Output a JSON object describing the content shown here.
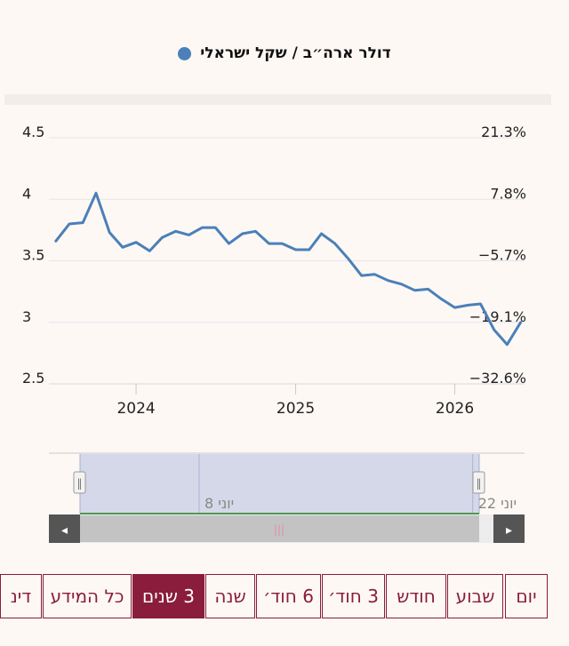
{
  "legend": {
    "label": "דולר ארה״ב / שקל ישראלי",
    "color": "#4b80b8"
  },
  "chart_data": {
    "type": "line",
    "series": [
      {
        "name": "דולר ארה״ב / שקל ישראלי",
        "color": "#4b80b8",
        "points": [
          [
            "2023-07-01",
            3.66
          ],
          [
            "2023-08-01",
            3.8
          ],
          [
            "2023-09-01",
            3.81
          ],
          [
            "2023-10-01",
            4.05
          ],
          [
            "2023-11-01",
            3.73
          ],
          [
            "2023-12-01",
            3.61
          ],
          [
            "2024-01-01",
            3.65
          ],
          [
            "2024-02-01",
            3.58
          ],
          [
            "2024-03-01",
            3.69
          ],
          [
            "2024-04-01",
            3.74
          ],
          [
            "2024-05-01",
            3.71
          ],
          [
            "2024-06-01",
            3.77
          ],
          [
            "2024-07-01",
            3.77
          ],
          [
            "2024-08-01",
            3.64
          ],
          [
            "2024-09-01",
            3.72
          ],
          [
            "2024-10-01",
            3.74
          ],
          [
            "2024-11-01",
            3.64
          ],
          [
            "2024-12-01",
            3.64
          ],
          [
            "2025-01-01",
            3.59
          ],
          [
            "2025-02-01",
            3.59
          ],
          [
            "2025-03-01",
            3.72
          ],
          [
            "2025-04-01",
            3.64
          ],
          [
            "2025-05-01",
            3.52
          ],
          [
            "2025-06-01",
            3.38
          ],
          [
            "2025-07-01",
            3.39
          ],
          [
            "2025-08-01",
            3.34
          ],
          [
            "2025-09-01",
            3.31
          ],
          [
            "2025-10-01",
            3.26
          ],
          [
            "2025-11-01",
            3.27
          ],
          [
            "2025-12-01",
            3.19
          ],
          [
            "2026-01-01",
            3.12
          ],
          [
            "2026-02-01",
            3.14
          ],
          [
            "2026-03-01",
            3.15
          ],
          [
            "2026-04-01",
            2.94
          ],
          [
            "2026-05-01",
            2.82
          ],
          [
            "2026-06-01",
            3.0
          ]
        ]
      }
    ],
    "y_left": {
      "min": 2.5,
      "max": 4.5,
      "ticks": [
        "4.5",
        "4",
        "3.5",
        "3",
        "2.5"
      ],
      "tick_values": [
        4.5,
        4,
        3.5,
        3,
        2.5
      ]
    },
    "y_right": {
      "ticks": [
        "21.3%",
        "7.8%",
        "−5.7%",
        "−19.1%",
        "−32.6%"
      ]
    },
    "x_range": [
      "2023-06-15",
      "2026-06-10"
    ],
    "x_ticks": [
      {
        "date": "2024-01-01",
        "label": "2024"
      },
      {
        "date": "2025-01-01",
        "label": "2025"
      },
      {
        "date": "2026-01-01",
        "label": "2026"
      }
    ],
    "grid": true
  },
  "navigator": {
    "labels": [
      {
        "date": "2025-06-08",
        "label": "יוני 8"
      },
      {
        "date": "2026-06-22",
        "label": "יוני 22"
      }
    ],
    "left_arrow": "◂",
    "right_arrow": "▸",
    "handle_glyph": "‖",
    "thumb_glyph": "|||"
  },
  "periods": [
    {
      "label": "יום",
      "active": false
    },
    {
      "label": "שבוע",
      "active": false
    },
    {
      "label": "חודש",
      "active": false
    },
    {
      "label": "3 חוד׳",
      "active": false
    },
    {
      "label": "6 חוד׳",
      "active": false
    },
    {
      "label": "שנה",
      "active": false
    },
    {
      "label": "3 שנים",
      "active": true
    },
    {
      "label": "כל המידע",
      "active": false
    },
    {
      "label": "דינ",
      "active": false
    }
  ]
}
